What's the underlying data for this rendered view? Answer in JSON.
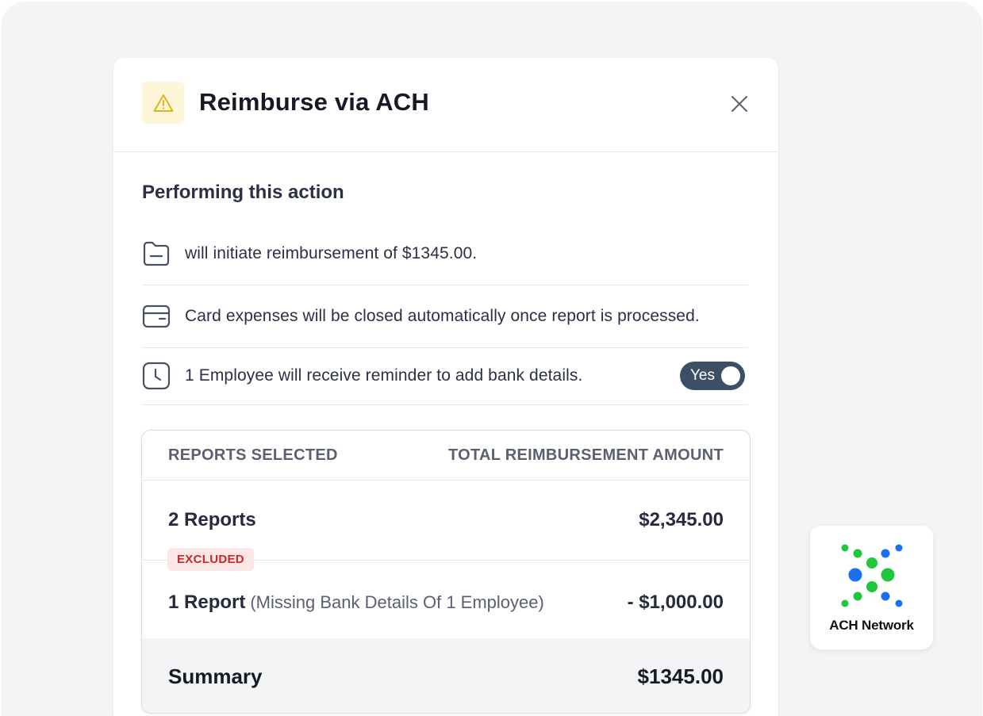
{
  "modal": {
    "title": "Reimburse via ACH",
    "icons": {
      "header": "warning-icon",
      "close": "close-icon"
    }
  },
  "actions": {
    "title": "Performing this action",
    "items": [
      {
        "icon": "folder-icon",
        "text": "will initiate reimbursement of $1345.00."
      },
      {
        "icon": "card-icon",
        "text": "Card expenses will be closed automatically once report is processed."
      },
      {
        "icon": "clock-icon",
        "text": "1 Employee will receive reminder to add bank details."
      }
    ],
    "toggle": {
      "label": "Yes",
      "on": true
    }
  },
  "table": {
    "headers": {
      "left": "REPORTS SELECTED",
      "right": "TOTAL REIMBURSEMENT AMOUNT"
    },
    "rows": [
      {
        "label": "2 Reports",
        "amount": "$2,345.00"
      },
      {
        "badge": "EXCLUDED",
        "label": "1 Report",
        "sublabel": "(Missing Bank Details Of 1 Employee)",
        "amount": "- $1,000.00"
      }
    ],
    "summary": {
      "label": "Summary",
      "amount": "$1345.00"
    }
  },
  "ach": {
    "label": "ACH Network",
    "icon": "ach-network-logo"
  },
  "colors": {
    "background": "#f3f4f6",
    "warning_bg": "#fdf6d8",
    "warning_icon": "#e0b31a",
    "toggle": "#3d4f64",
    "badge_bg": "#fde6e6",
    "badge_text": "#c42b2b",
    "ach_green": "#1fc73a",
    "ach_blue": "#1a6ef0"
  }
}
